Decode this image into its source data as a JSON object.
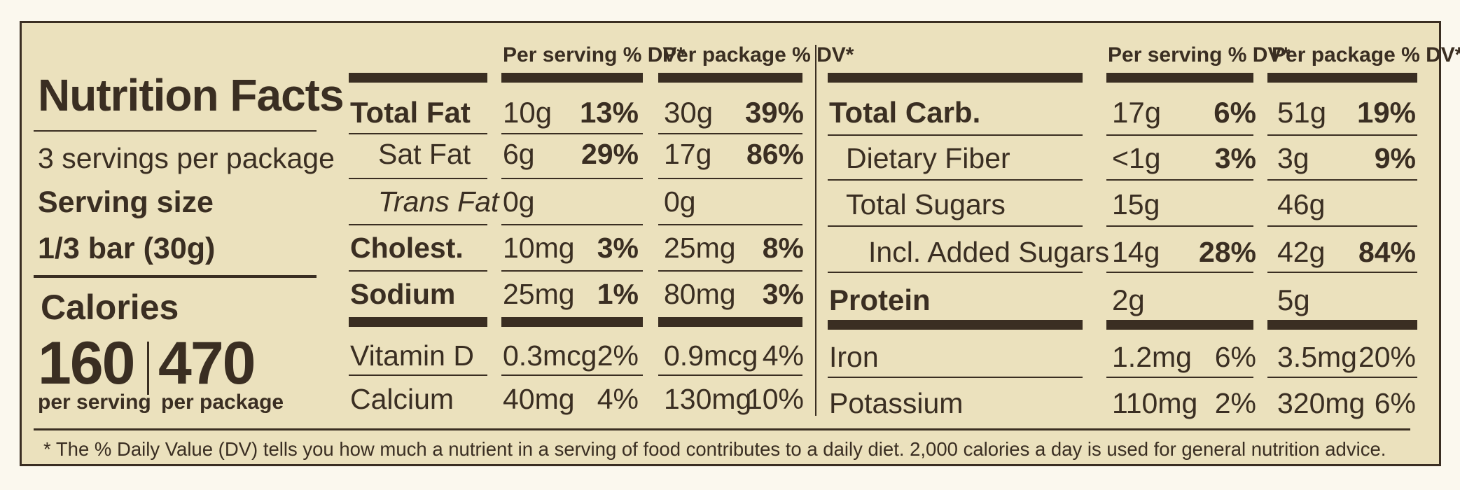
{
  "label": {
    "title": "Nutrition Facts",
    "servings": "3 servings per package",
    "serving_size_label": "Serving size",
    "serving_size_value": "1/3 bar (30g)",
    "calories_label": "Calories",
    "calories_serving": "160",
    "calories_serving_caption": "per serving",
    "calories_package": "470",
    "calories_package_caption": "per package"
  },
  "headers": {
    "per_serving": "Per serving",
    "per_package": "Per package",
    "dv": "% DV*"
  },
  "left_rows": [
    {
      "name": "Total Fat",
      "s_amt": "10g",
      "s_dv": "13%",
      "p_amt": "30g",
      "p_dv": "39%"
    },
    {
      "name": "Sat Fat",
      "s_amt": "6g",
      "s_dv": "29%",
      "p_amt": "17g",
      "p_dv": "86%"
    },
    {
      "name": "Trans Fat",
      "s_amt": "0g",
      "s_dv": "",
      "p_amt": "0g",
      "p_dv": ""
    },
    {
      "name": "Cholest.",
      "s_amt": "10mg",
      "s_dv": "3%",
      "p_amt": "25mg",
      "p_dv": "8%"
    },
    {
      "name": "Sodium",
      "s_amt": "25mg",
      "s_dv": "1%",
      "p_amt": "80mg",
      "p_dv": "3%"
    },
    {
      "name": "Vitamin D",
      "s_amt": "0.3mcg",
      "s_dv": "2%",
      "p_amt": "0.9mcg",
      "p_dv": "4%"
    },
    {
      "name": "Calcium",
      "s_amt": "40mg",
      "s_dv": "4%",
      "p_amt": "130mg",
      "p_dv": "10%"
    }
  ],
  "right_rows": [
    {
      "name": "Total Carb.",
      "s_amt": "17g",
      "s_dv": "6%",
      "p_amt": "51g",
      "p_dv": "19%"
    },
    {
      "name": "Dietary Fiber",
      "s_amt": "<1g",
      "s_dv": "3%",
      "p_amt": "3g",
      "p_dv": "9%"
    },
    {
      "name": "Total Sugars",
      "s_amt": "15g",
      "s_dv": "",
      "p_amt": "46g",
      "p_dv": ""
    },
    {
      "name": "Incl. Added Sugars",
      "s_amt": "14g",
      "s_dv": "28%",
      "p_amt": "42g",
      "p_dv": "84%"
    },
    {
      "name": "Protein",
      "s_amt": "2g",
      "s_dv": "",
      "p_amt": "5g",
      "p_dv": ""
    },
    {
      "name": "Iron",
      "s_amt": "1.2mg",
      "s_dv": "6%",
      "p_amt": "3.5mg",
      "p_dv": "20%"
    },
    {
      "name": "Potassium",
      "s_amt": "110mg",
      "s_dv": "2%",
      "p_amt": "320mg",
      "p_dv": "6%"
    }
  ],
  "footnote": "* The % Daily Value (DV) tells you how much a nutrient in a serving of food contributes to a daily diet. 2,000 calories a day is used for general nutrition advice."
}
